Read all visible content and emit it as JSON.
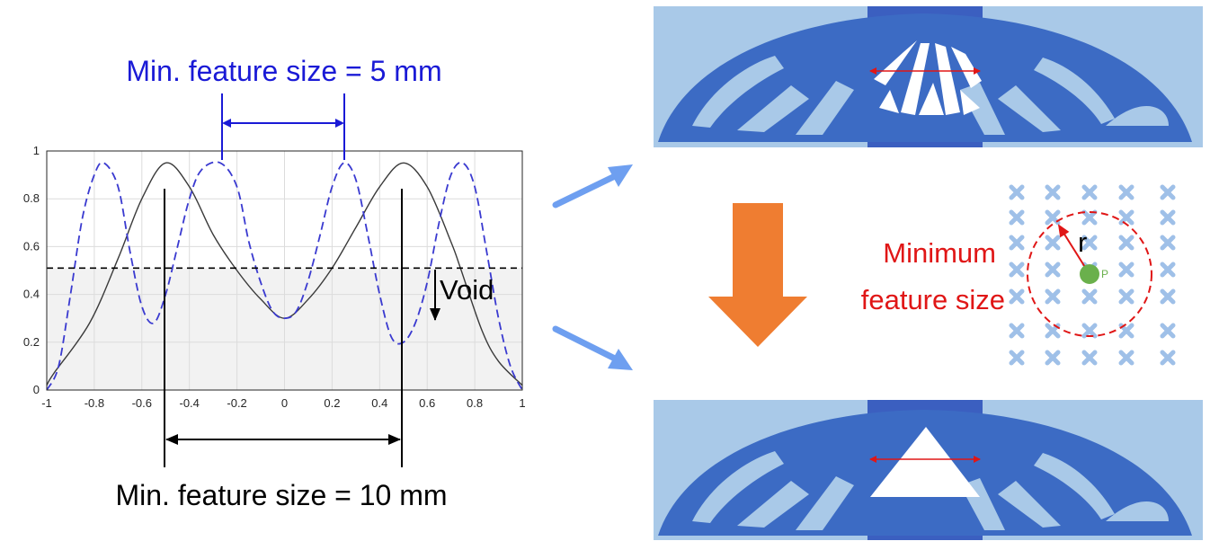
{
  "colors": {
    "blue_text": "#1a1ad6",
    "red_text": "#e01616",
    "structure_blue": "#3c6bc4",
    "panel_light": "#a9c9e8",
    "panel_mid": "#3b5fc0",
    "arrow_light": "#6e9ff0",
    "arrow_orange": "#ef7d31",
    "grid_cross": "#9fc0e8",
    "node_green": "#6ab04c",
    "void_band": "#f2f2f2"
  },
  "labels": {
    "min_feature_5": "Min. feature size = 5 mm",
    "min_feature_10": "Min. feature size = 10 mm",
    "void": "Void",
    "minimum_line1": "Minimum",
    "minimum_line2": "feature size",
    "radius": "r",
    "node": "P"
  },
  "chart_data": {
    "type": "line",
    "xlim": [
      -1,
      1
    ],
    "ylim": [
      0,
      1
    ],
    "xticks": [
      "-1",
      "-0.8",
      "-0.6",
      "-0.4",
      "-0.2",
      "0",
      "0.2",
      "0.4",
      "0.6",
      "0.8",
      "1"
    ],
    "yticks": [
      "0",
      "0.2",
      "0.4",
      "0.6",
      "0.8",
      "1"
    ],
    "grid": true,
    "threshold": 0.51,
    "series": [
      {
        "style": "solid",
        "color": "#3a3a3a",
        "points": [
          [
            -1,
            0.02
          ],
          [
            -0.97,
            0.07
          ],
          [
            -0.82,
            0.28
          ],
          [
            -0.7,
            0.55
          ],
          [
            -0.6,
            0.8
          ],
          [
            -0.5,
            0.95
          ],
          [
            -0.4,
            0.85
          ],
          [
            -0.3,
            0.65
          ],
          [
            -0.2,
            0.5
          ],
          [
            -0.1,
            0.38
          ],
          [
            0,
            0.3
          ],
          [
            0.1,
            0.38
          ],
          [
            0.2,
            0.51
          ],
          [
            0.3,
            0.68
          ],
          [
            0.4,
            0.85
          ],
          [
            0.5,
            0.95
          ],
          [
            0.6,
            0.85
          ],
          [
            0.7,
            0.62
          ],
          [
            0.74,
            0.51
          ],
          [
            0.83,
            0.25
          ],
          [
            0.9,
            0.12
          ],
          [
            1,
            0.02
          ]
        ]
      },
      {
        "style": "dashed",
        "color": "#3a3ad0",
        "points": [
          [
            -1,
            0.0
          ],
          [
            -0.95,
            0.1
          ],
          [
            -0.9,
            0.4
          ],
          [
            -0.85,
            0.72
          ],
          [
            -0.8,
            0.9
          ],
          [
            -0.76,
            0.95
          ],
          [
            -0.7,
            0.85
          ],
          [
            -0.65,
            0.58
          ],
          [
            -0.6,
            0.35
          ],
          [
            -0.55,
            0.28
          ],
          [
            -0.5,
            0.4
          ],
          [
            -0.45,
            0.6
          ],
          [
            -0.4,
            0.8
          ],
          [
            -0.35,
            0.92
          ],
          [
            -0.27,
            0.95
          ],
          [
            -0.2,
            0.85
          ],
          [
            -0.15,
            0.62
          ],
          [
            -0.1,
            0.45
          ],
          [
            -0.05,
            0.33
          ],
          [
            0,
            0.3
          ],
          [
            0.05,
            0.33
          ],
          [
            0.1,
            0.46
          ],
          [
            0.15,
            0.65
          ],
          [
            0.2,
            0.85
          ],
          [
            0.25,
            0.95
          ],
          [
            0.3,
            0.88
          ],
          [
            0.35,
            0.65
          ],
          [
            0.4,
            0.4
          ],
          [
            0.45,
            0.22
          ],
          [
            0.5,
            0.2
          ],
          [
            0.55,
            0.28
          ],
          [
            0.6,
            0.45
          ],
          [
            0.65,
            0.7
          ],
          [
            0.7,
            0.9
          ],
          [
            0.75,
            0.95
          ],
          [
            0.8,
            0.85
          ],
          [
            0.85,
            0.58
          ],
          [
            0.9,
            0.3
          ],
          [
            0.95,
            0.1
          ],
          [
            1,
            0.0
          ]
        ]
      }
    ]
  }
}
